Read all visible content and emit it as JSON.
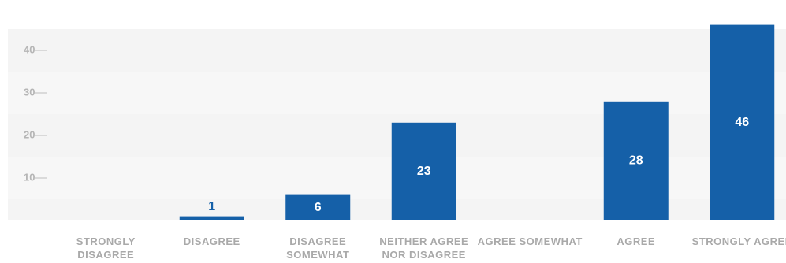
{
  "chart_data": {
    "type": "bar",
    "categories": [
      "STRONGLY DISAGREE",
      "DISAGREE",
      "DISAGREE SOMEWHAT",
      "NEITHER AGREE NOR DISAGREE",
      "AGREE SOMEWHAT",
      "AGREE",
      "STRONGLY AGREE"
    ],
    "values": [
      0,
      1,
      6,
      23,
      0,
      28,
      46
    ],
    "color": "#1560a8",
    "ylim": [
      0,
      50
    ],
    "yticks": [
      10,
      20,
      30,
      40
    ],
    "grid": true
  }
}
